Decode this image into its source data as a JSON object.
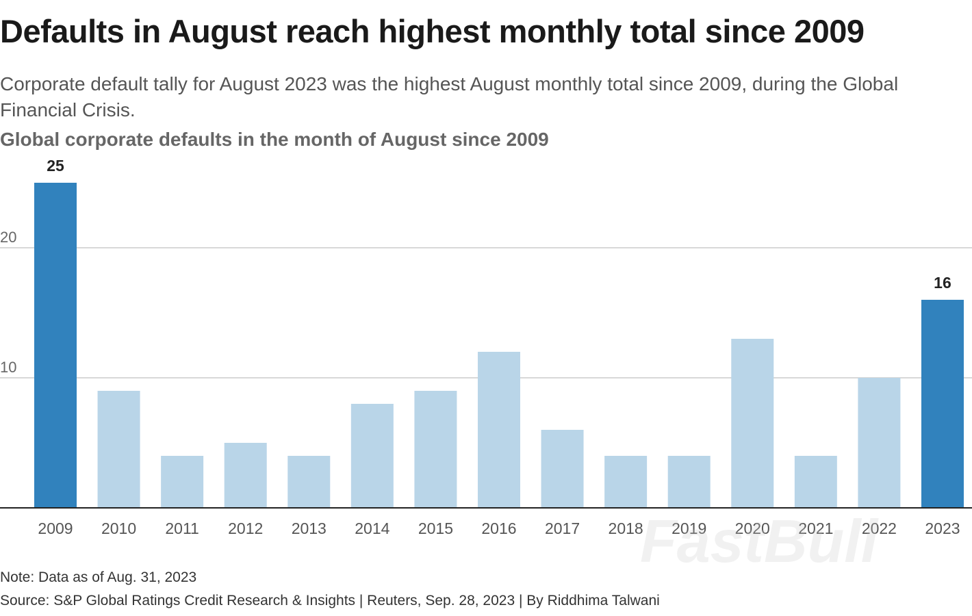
{
  "title": "Defaults in August reach highest monthly total since 2009",
  "subtitle": "Corporate default tally for August 2023 was the highest August monthly total since 2009, during the Global Financial Crisis.",
  "note": "Note: Data as of Aug. 31, 2023",
  "source": "Source: S&P Global Ratings Credit Research & Insights | Reuters, Sep. 28, 2023 | By Riddhima Talwani",
  "watermark": "FastBull",
  "chart_data": {
    "type": "bar",
    "title": "Global corporate defaults in the month of August since 2009",
    "categories": [
      "2009",
      "2010",
      "2011",
      "2012",
      "2013",
      "2014",
      "2015",
      "2016",
      "2017",
      "2018",
      "2019",
      "2020",
      "2021",
      "2022",
      "2023"
    ],
    "values": [
      25,
      9,
      4,
      5,
      4,
      8,
      9,
      12,
      6,
      4,
      4,
      13,
      4,
      10,
      16
    ],
    "highlighted": [
      "2009",
      "2023"
    ],
    "data_labels": {
      "2009": "25",
      "2023": "16"
    },
    "yticks": [
      10,
      20
    ],
    "ylim": [
      0,
      25
    ],
    "grid": true,
    "colors": {
      "highlight": "#3182bd",
      "default": "#b9d5e8"
    }
  }
}
